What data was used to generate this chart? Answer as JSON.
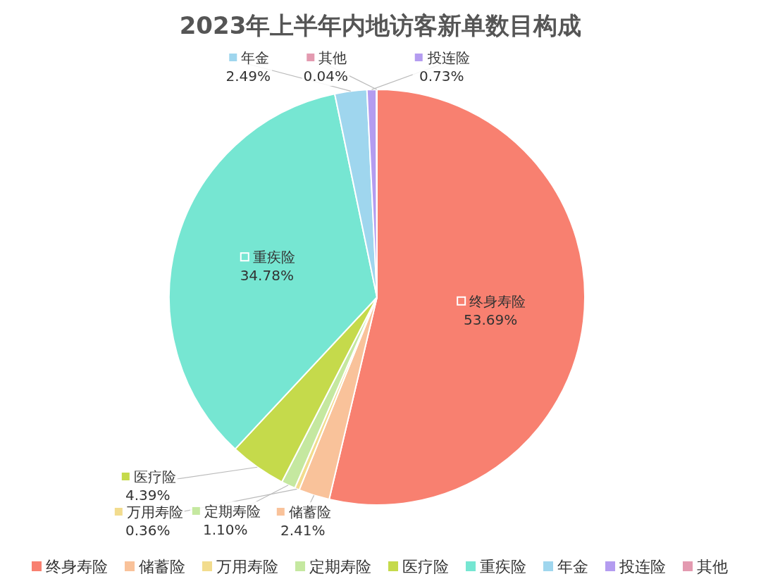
{
  "chart_data": {
    "type": "pie",
    "title": "2023年上半年内地访客新单数目构成",
    "categories": [
      "终身寿险",
      "储蓄险",
      "万用寿险",
      "定期寿险",
      "医疗险",
      "重疾险",
      "年金",
      "投连险",
      "其他"
    ],
    "values": [
      53.69,
      2.41,
      0.36,
      1.1,
      4.39,
      34.78,
      2.49,
      0.73,
      0.04
    ],
    "colors": [
      "#f88070",
      "#f9c29a",
      "#f2dc8e",
      "#c5e8a0",
      "#c5da4b",
      "#76e6d2",
      "#9fd6ee",
      "#b49cf0",
      "#e39ab0"
    ],
    "value_labels": [
      "53.69%",
      "2.41%",
      "0.36%",
      "1.10%",
      "4.39%",
      "34.78%",
      "2.49%",
      "0.73%",
      "0.04%"
    ],
    "legend": "bottom"
  }
}
